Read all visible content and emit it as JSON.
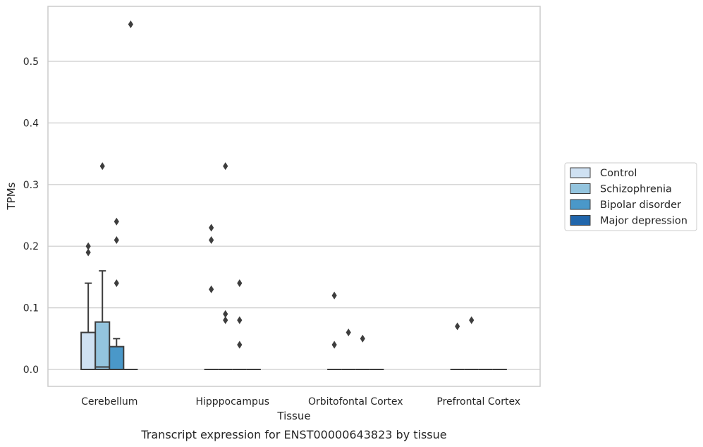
{
  "chart_data": {
    "type": "box",
    "xlabel": "Tissue",
    "ylabel": "TPMs",
    "caption": "Transcript expression for ENST00000643823 by tissue",
    "ylim": [
      -0.027,
      0.59
    ],
    "yticks": [
      "0.0",
      "0.1",
      "0.2",
      "0.3",
      "0.4",
      "0.5"
    ],
    "grid": "horizontal",
    "legend_position": "right",
    "categories": [
      "Cerebellum",
      "Hipppocampus",
      "Orbitofontal Cortex",
      "Prefrontal Cortex"
    ],
    "series": [
      {
        "name": "Control",
        "color": "#cfe1f2",
        "boxes": [
          {
            "q1": 0.0,
            "median": 0.0,
            "q3": 0.06,
            "whisker_low": 0.0,
            "whisker_high": 0.14,
            "outliers": [
              0.2,
              0.19
            ]
          },
          {
            "q1": 0.0,
            "median": 0.0,
            "q3": 0.0,
            "whisker_low": 0.0,
            "whisker_high": 0.0,
            "outliers": [
              0.23,
              0.21,
              0.13
            ]
          },
          {
            "q1": 0.0,
            "median": 0.0,
            "q3": 0.0,
            "whisker_low": 0.0,
            "whisker_high": 0.0,
            "outliers": [
              0.12,
              0.04
            ]
          },
          {
            "q1": 0.0,
            "median": 0.0,
            "q3": 0.0,
            "whisker_low": 0.0,
            "whisker_high": 0.0,
            "outliers": [
              0.07
            ]
          }
        ]
      },
      {
        "name": "Schizophrenia",
        "color": "#93c4de",
        "boxes": [
          {
            "q1": 0.0,
            "median": 0.004,
            "q3": 0.077,
            "whisker_low": 0.0,
            "whisker_high": 0.16,
            "outliers": [
              0.33
            ]
          },
          {
            "q1": 0.0,
            "median": 0.0,
            "q3": 0.0,
            "whisker_low": 0.0,
            "whisker_high": 0.0,
            "outliers": [
              0.33,
              0.09,
              0.08
            ]
          },
          {
            "q1": 0.0,
            "median": 0.0,
            "q3": 0.0,
            "whisker_low": 0.0,
            "whisker_high": 0.0,
            "outliers": [
              0.06
            ]
          },
          {
            "q1": 0.0,
            "median": 0.0,
            "q3": 0.0,
            "whisker_low": 0.0,
            "whisker_high": 0.0,
            "outliers": [
              0.08
            ]
          }
        ]
      },
      {
        "name": "Bipolar disorder",
        "color": "#4a98c9",
        "boxes": [
          {
            "q1": 0.0,
            "median": 0.0,
            "q3": 0.037,
            "whisker_low": 0.0,
            "whisker_high": 0.05,
            "outliers": [
              0.24,
              0.21,
              0.14
            ]
          },
          {
            "q1": 0.0,
            "median": 0.0,
            "q3": 0.0,
            "whisker_low": 0.0,
            "whisker_high": 0.0,
            "outliers": [
              0.14,
              0.08,
              0.04
            ]
          },
          {
            "q1": 0.0,
            "median": 0.0,
            "q3": 0.0,
            "whisker_low": 0.0,
            "whisker_high": 0.0,
            "outliers": [
              0.05
            ]
          },
          {
            "q1": 0.0,
            "median": 0.0,
            "q3": 0.0,
            "whisker_low": 0.0,
            "whisker_high": 0.0,
            "outliers": []
          }
        ]
      },
      {
        "name": "Major depression",
        "color": "#2166ab",
        "boxes": [
          {
            "q1": 0.0,
            "median": 0.0,
            "q3": 0.0,
            "whisker_low": 0.0,
            "whisker_high": 0.0,
            "outliers": [
              0.56
            ]
          },
          {
            "q1": 0.0,
            "median": 0.0,
            "q3": 0.0,
            "whisker_low": 0.0,
            "whisker_high": 0.0,
            "outliers": []
          },
          {
            "q1": 0.0,
            "median": 0.0,
            "q3": 0.0,
            "whisker_low": 0.0,
            "whisker_high": 0.0,
            "outliers": []
          },
          {
            "q1": 0.0,
            "median": 0.0,
            "q3": 0.0,
            "whisker_low": 0.0,
            "whisker_high": 0.0,
            "outliers": []
          }
        ]
      }
    ]
  }
}
